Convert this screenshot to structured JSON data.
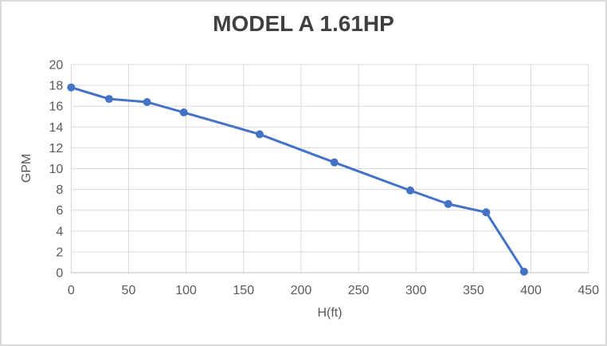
{
  "window": {
    "background": "#FFFFFF",
    "frame_border_color": "#D9D9D9"
  },
  "chart_data": {
    "type": "line",
    "title": "MODEL A 1.61HP",
    "xlabel": "H(ft)",
    "ylabel": "GPM",
    "x": [
      0,
      33,
      66,
      98,
      164,
      229,
      295,
      328,
      361,
      394
    ],
    "y": [
      17.8,
      16.7,
      16.4,
      15.4,
      13.3,
      10.6,
      7.9,
      6.6,
      5.8,
      0.1
    ],
    "xlim": [
      0,
      450
    ],
    "ylim": [
      0,
      20
    ],
    "x_ticks": [
      0,
      50,
      100,
      150,
      200,
      250,
      300,
      350,
      400,
      450
    ],
    "y_ticks": [
      0,
      2,
      4,
      6,
      8,
      10,
      12,
      14,
      16,
      18,
      20
    ],
    "grid": true,
    "legend": false,
    "marker": "circle",
    "marker_radius": 5,
    "line_width": 3,
    "colors": {
      "series": "#4472C4",
      "gridline": "#D9D9D9",
      "axis_line": "#BFBFBF",
      "tick_label": "#595959",
      "axis_title": "#595959",
      "chart_title": "#404040"
    }
  }
}
